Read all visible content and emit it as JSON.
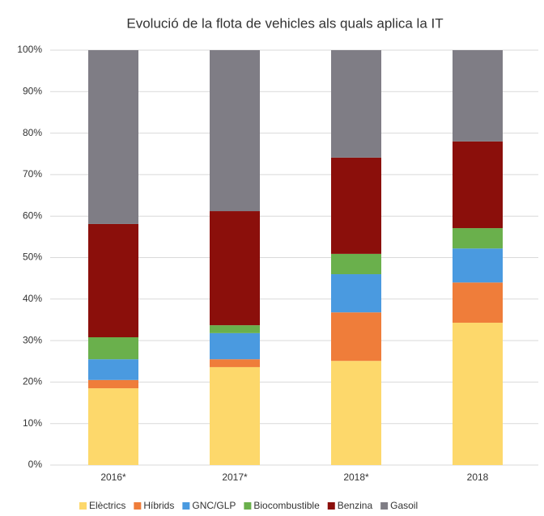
{
  "chart_data": {
    "type": "stacked_bar_percent",
    "title": "Evolució de la flota de vehicles als quals aplica la IT",
    "categories": [
      "2016*",
      "2017*",
      "2018*",
      "2018"
    ],
    "series": [
      {
        "name": "Elèctrics",
        "color": "#fdd86b",
        "values": [
          18.5,
          23.6,
          25.1,
          34.3
        ]
      },
      {
        "name": "Híbrids",
        "color": "#ef7d3a",
        "values": [
          2,
          1.9,
          11.7,
          9.7
        ]
      },
      {
        "name": "GNC/GLP",
        "color": "#4a9ae0",
        "values": [
          5,
          6.3,
          9.2,
          8.2
        ]
      },
      {
        "name": "Biocombustible",
        "color": "#6ab04c",
        "values": [
          5.3,
          1.9,
          4.9,
          4.9
        ]
      },
      {
        "name": "Benzina",
        "color": "#8b0f0b",
        "values": [
          27.3,
          27.5,
          23.2,
          20.9
        ]
      },
      {
        "name": "Gasoil",
        "color": "#7f7d85",
        "values": [
          41.9,
          38.8,
          25.9,
          22
        ]
      }
    ],
    "ylim": [
      0,
      100
    ],
    "yticks": [
      {
        "value": 0,
        "label": "0%"
      },
      {
        "value": 10,
        "label": "10%"
      },
      {
        "value": 20,
        "label": "20%"
      },
      {
        "value": 30,
        "label": "30%"
      },
      {
        "value": 40,
        "label": "40%"
      },
      {
        "value": 50,
        "label": "50%"
      },
      {
        "value": 60,
        "label": "60%"
      },
      {
        "value": 70,
        "label": "70%"
      },
      {
        "value": 80,
        "label": "80%"
      },
      {
        "value": 90,
        "label": "90%"
      },
      {
        "value": 100,
        "label": "100%"
      }
    ],
    "grid": true,
    "legend": "bottom"
  }
}
